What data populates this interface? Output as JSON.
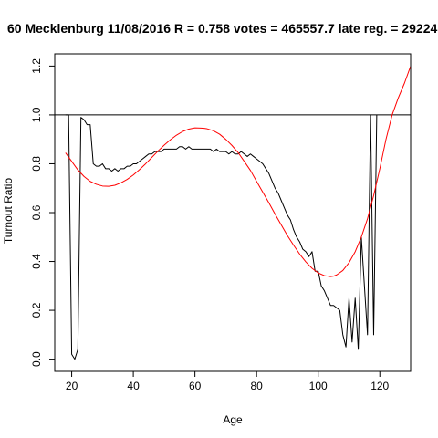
{
  "chart_data": {
    "type": "line",
    "title": "60 Mecklenburg 11/08/2016 R = 0.758 votes = 465557.7 late reg. = 29224",
    "xlabel": "Age",
    "ylabel": "Turnout Ratio",
    "xlim": [
      14.5,
      130
    ],
    "ylim": [
      -0.05,
      1.25
    ],
    "xticks": [
      20,
      40,
      60,
      80,
      100,
      120
    ],
    "yticks": [
      0.0,
      0.2,
      0.4,
      0.6,
      0.8,
      1.0,
      1.2
    ],
    "xtick_labels": [
      "20",
      "40",
      "60",
      "80",
      "100",
      "120"
    ],
    "ytick_labels": [
      "0.0",
      "0.2",
      "0.4",
      "0.6",
      "0.8",
      "1.0",
      "1.2"
    ],
    "reference_line": {
      "y": 1.0,
      "color": "#000000"
    },
    "grid": false,
    "series": [
      {
        "color": "#000000",
        "x": [
          18,
          19,
          20,
          21,
          22,
          23,
          24,
          25,
          26,
          27,
          28,
          29,
          30,
          31,
          32,
          33,
          34,
          35,
          36,
          37,
          38,
          39,
          40,
          41,
          42,
          43,
          44,
          45,
          46,
          47,
          48,
          49,
          50,
          51,
          52,
          53,
          54,
          55,
          56,
          57,
          58,
          59,
          60,
          61,
          62,
          63,
          64,
          65,
          66,
          67,
          68,
          69,
          70,
          71,
          72,
          73,
          74,
          75,
          76,
          77,
          78,
          79,
          80,
          81,
          82,
          83,
          84,
          85,
          86,
          87,
          88,
          89,
          90,
          91,
          92,
          93,
          94,
          95,
          96,
          97,
          98,
          99,
          100,
          101,
          102,
          103,
          104,
          105,
          106,
          107,
          108,
          109,
          110,
          111,
          112,
          113,
          114,
          115,
          116,
          117,
          118,
          119
        ],
        "values": [
          1.0,
          1.0,
          0.02,
          0.0,
          0.04,
          0.99,
          0.98,
          0.96,
          0.96,
          0.8,
          0.79,
          0.79,
          0.8,
          0.78,
          0.78,
          0.77,
          0.78,
          0.77,
          0.78,
          0.78,
          0.79,
          0.79,
          0.8,
          0.8,
          0.81,
          0.82,
          0.83,
          0.84,
          0.84,
          0.85,
          0.85,
          0.85,
          0.86,
          0.86,
          0.86,
          0.86,
          0.86,
          0.87,
          0.87,
          0.86,
          0.87,
          0.86,
          0.86,
          0.86,
          0.86,
          0.86,
          0.86,
          0.86,
          0.85,
          0.86,
          0.85,
          0.85,
          0.85,
          0.84,
          0.85,
          0.84,
          0.84,
          0.85,
          0.84,
          0.83,
          0.84,
          0.83,
          0.82,
          0.81,
          0.8,
          0.78,
          0.76,
          0.73,
          0.7,
          0.68,
          0.65,
          0.62,
          0.59,
          0.57,
          0.53,
          0.5,
          0.48,
          0.45,
          0.44,
          0.42,
          0.44,
          0.36,
          0.36,
          0.3,
          0.28,
          0.25,
          0.22,
          0.22,
          0.21,
          0.2,
          0.1,
          0.05,
          0.25,
          0.07,
          0.25,
          0.04,
          0.5,
          0.3,
          0.1,
          1.0,
          0.1,
          1.0
        ]
      },
      {
        "color": "#ff0000",
        "x": [
          18,
          20,
          22,
          24,
          26,
          28,
          30,
          32,
          34,
          36,
          38,
          40,
          42,
          44,
          46,
          48,
          50,
          52,
          54,
          56,
          58,
          60,
          62,
          63,
          64,
          66,
          68,
          70,
          72,
          74,
          76,
          78,
          80,
          82,
          84,
          86,
          88,
          90,
          92,
          94,
          96,
          98,
          100,
          102,
          104,
          105,
          106,
          108,
          110,
          112,
          114,
          116,
          118,
          120,
          122,
          124,
          126,
          128,
          130
        ],
        "values": [
          0.845,
          0.81,
          0.775,
          0.748,
          0.728,
          0.716,
          0.709,
          0.708,
          0.712,
          0.722,
          0.736,
          0.754,
          0.776,
          0.8,
          0.826,
          0.852,
          0.876,
          0.898,
          0.917,
          0.932,
          0.942,
          0.947,
          0.946,
          0.945,
          0.943,
          0.935,
          0.921,
          0.9,
          0.875,
          0.846,
          0.81,
          0.773,
          0.728,
          0.684,
          0.64,
          0.594,
          0.55,
          0.506,
          0.467,
          0.43,
          0.398,
          0.372,
          0.353,
          0.342,
          0.338,
          0.34,
          0.345,
          0.363,
          0.395,
          0.44,
          0.5,
          0.575,
          0.67,
          0.78,
          0.9,
          1.0,
          1.07,
          1.13,
          1.2
        ]
      }
    ]
  }
}
